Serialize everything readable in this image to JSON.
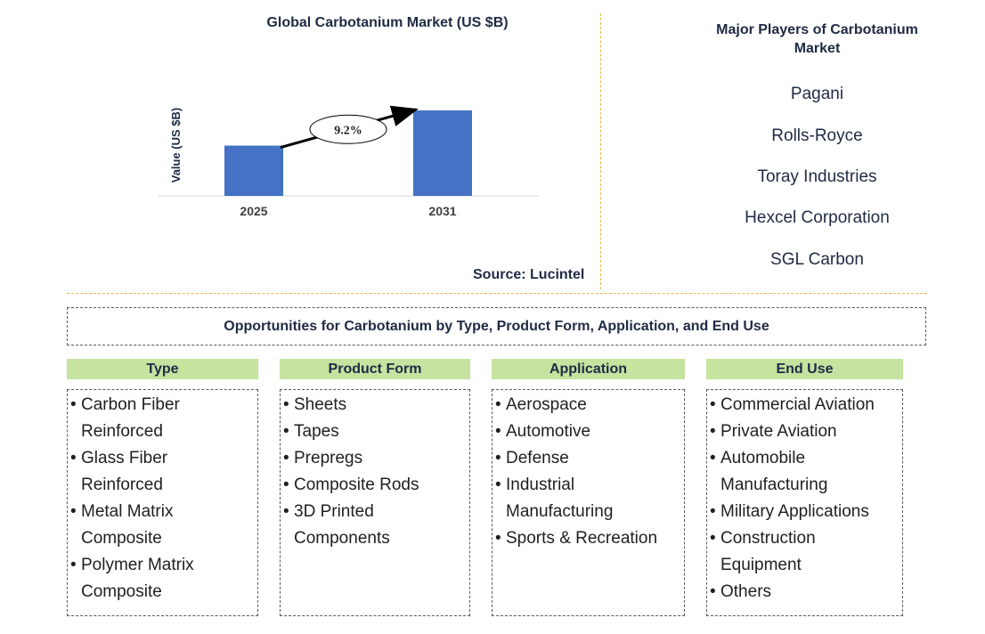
{
  "chart_data": {
    "type": "bar",
    "title": "Global Carbotanium Market (US $B)",
    "ylabel": "Value (US $B)",
    "xlabel": "",
    "categories": [
      "2025",
      "2031"
    ],
    "values": [
      1.0,
      1.7
    ],
    "ylim": [
      0,
      1.7
    ],
    "annotation": "9.2%",
    "bar_color": "#4472c4",
    "grid": false
  },
  "source": "Source: Lucintel",
  "players": {
    "title": "Major Players of Carbotanium Market",
    "items": [
      "Pagani",
      "Rolls-Royce",
      "Toray Industries",
      "Hexcel Corporation",
      "SGL Carbon"
    ]
  },
  "opportunities": {
    "title": "Opportunities for Carbotanium by Type, Product Form, Application, and End Use",
    "header_color": "#c6e3a0",
    "categories": [
      {
        "header": "Type",
        "items": [
          "Carbon Fiber Reinforced",
          "Glass Fiber Reinforced",
          "Metal Matrix Composite",
          "Polymer Matrix Composite"
        ]
      },
      {
        "header": "Product Form",
        "items": [
          "Sheets",
          "Tapes",
          "Prepregs",
          "Composite Rods",
          "3D Printed Components"
        ]
      },
      {
        "header": "Application",
        "items": [
          "Aerospace",
          "Automotive",
          "Defense",
          "Industrial Manufacturing",
          "Sports & Recreation"
        ]
      },
      {
        "header": "End Use",
        "items": [
          "Commercial Aviation",
          "Private Aviation",
          "Automobile Manufacturing",
          "Military Applications",
          "Construction Equipment",
          "Others"
        ]
      }
    ]
  }
}
